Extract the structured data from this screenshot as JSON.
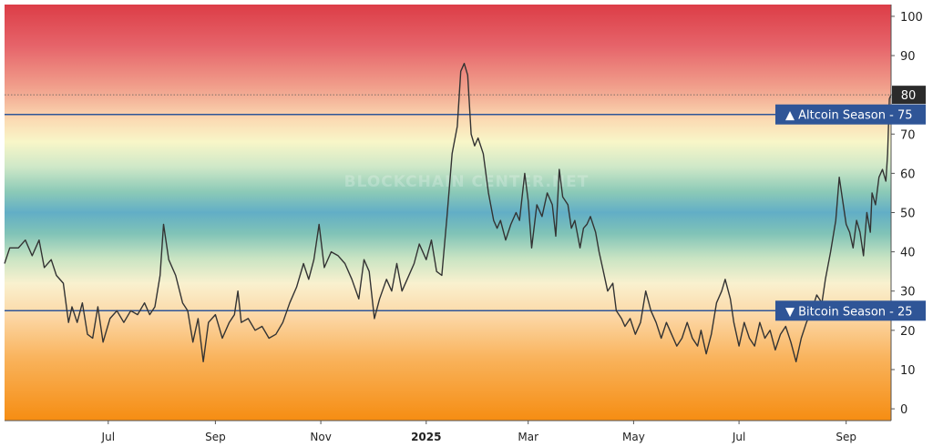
{
  "chart_data": {
    "type": "line",
    "title": "",
    "xlabel": "",
    "ylabel": "",
    "ylim": [
      -3,
      103
    ],
    "y_ticks": [
      0,
      10,
      20,
      30,
      40,
      50,
      60,
      70,
      80,
      90,
      100
    ],
    "x_tick_labels": [
      {
        "label": "Jul",
        "date": "2024-07-01"
      },
      {
        "label": "Sep",
        "date": "2024-09-01"
      },
      {
        "label": "Nov",
        "date": "2024-11-01"
      },
      {
        "label": "2025",
        "date": "2025-01-01",
        "bold": true
      },
      {
        "label": "Mar",
        "date": "2025-03-01"
      },
      {
        "label": "May",
        "date": "2025-05-01"
      },
      {
        "label": "Jul",
        "date": "2025-07-01"
      },
      {
        "label": "Sep",
        "date": "2025-09-01"
      }
    ],
    "x_range": [
      "2024-05-02",
      "2025-09-27"
    ],
    "background": "gradient red (top) through green/blue (middle) to orange (bottom)",
    "watermark": "BLOCKCHAIN CENTER.NET",
    "reference_lines": [
      {
        "value": 75,
        "label": "Altcoin Season",
        "value_label": "75",
        "marker": "▲",
        "color": "#2f5597"
      },
      {
        "value": 25,
        "label": "Bitcoin Season",
        "value_label": "25",
        "marker": "▼",
        "color": "#2f5597"
      }
    ],
    "current_value": {
      "value": 80,
      "label": "80",
      "color": "#2b2b2b"
    },
    "series": [
      {
        "color": "#333333",
        "points": [
          [
            "2024-05-02",
            37
          ],
          [
            "2024-05-05",
            41
          ],
          [
            "2024-05-10",
            41
          ],
          [
            "2024-05-14",
            43
          ],
          [
            "2024-05-18",
            39
          ],
          [
            "2024-05-22",
            43
          ],
          [
            "2024-05-25",
            36
          ],
          [
            "2024-05-29",
            38
          ],
          [
            "2024-06-01",
            34
          ],
          [
            "2024-06-05",
            32
          ],
          [
            "2024-06-08",
            22
          ],
          [
            "2024-06-10",
            26
          ],
          [
            "2024-06-13",
            22
          ],
          [
            "2024-06-16",
            27
          ],
          [
            "2024-06-19",
            19
          ],
          [
            "2024-06-22",
            18
          ],
          [
            "2024-06-25",
            26
          ],
          [
            "2024-06-28",
            17
          ],
          [
            "2024-07-02",
            23
          ],
          [
            "2024-07-06",
            25
          ],
          [
            "2024-07-10",
            22
          ],
          [
            "2024-07-14",
            25
          ],
          [
            "2024-07-18",
            24
          ],
          [
            "2024-07-22",
            27
          ],
          [
            "2024-07-25",
            24
          ],
          [
            "2024-07-28",
            26
          ],
          [
            "2024-07-31",
            34
          ],
          [
            "2024-08-02",
            47
          ],
          [
            "2024-08-05",
            38
          ],
          [
            "2024-08-09",
            34
          ],
          [
            "2024-08-13",
            27
          ],
          [
            "2024-08-16",
            25
          ],
          [
            "2024-08-19",
            17
          ],
          [
            "2024-08-22",
            23
          ],
          [
            "2024-08-25",
            12
          ],
          [
            "2024-08-28",
            22
          ],
          [
            "2024-09-01",
            24
          ],
          [
            "2024-09-05",
            18
          ],
          [
            "2024-09-09",
            22
          ],
          [
            "2024-09-12",
            24
          ],
          [
            "2024-09-14",
            30
          ],
          [
            "2024-09-16",
            22
          ],
          [
            "2024-09-20",
            23
          ],
          [
            "2024-09-24",
            20
          ],
          [
            "2024-09-28",
            21
          ],
          [
            "2024-10-02",
            18
          ],
          [
            "2024-10-06",
            19
          ],
          [
            "2024-10-10",
            22
          ],
          [
            "2024-10-14",
            27
          ],
          [
            "2024-10-18",
            31
          ],
          [
            "2024-10-22",
            37
          ],
          [
            "2024-10-25",
            33
          ],
          [
            "2024-10-28",
            38
          ],
          [
            "2024-10-31",
            47
          ],
          [
            "2024-11-03",
            36
          ],
          [
            "2024-11-07",
            40
          ],
          [
            "2024-11-11",
            39
          ],
          [
            "2024-11-15",
            37
          ],
          [
            "2024-11-19",
            33
          ],
          [
            "2024-11-23",
            28
          ],
          [
            "2024-11-26",
            38
          ],
          [
            "2024-11-29",
            35
          ],
          [
            "2024-12-02",
            23
          ],
          [
            "2024-12-05",
            28
          ],
          [
            "2024-12-09",
            33
          ],
          [
            "2024-12-12",
            30
          ],
          [
            "2024-12-15",
            37
          ],
          [
            "2024-12-18",
            30
          ],
          [
            "2024-12-21",
            33
          ],
          [
            "2024-12-25",
            37
          ],
          [
            "2024-12-28",
            42
          ],
          [
            "2025-01-01",
            38
          ],
          [
            "2025-01-04",
            43
          ],
          [
            "2025-01-07",
            35
          ],
          [
            "2025-01-10",
            34
          ],
          [
            "2025-01-13",
            49
          ],
          [
            "2025-01-16",
            65
          ],
          [
            "2025-01-19",
            72
          ],
          [
            "2025-01-21",
            86
          ],
          [
            "2025-01-23",
            88
          ],
          [
            "2025-01-25",
            85
          ],
          [
            "2025-01-27",
            70
          ],
          [
            "2025-01-29",
            67
          ],
          [
            "2025-01-31",
            69
          ],
          [
            "2025-02-03",
            65
          ],
          [
            "2025-02-06",
            55
          ],
          [
            "2025-02-09",
            48
          ],
          [
            "2025-02-11",
            46
          ],
          [
            "2025-02-13",
            48
          ],
          [
            "2025-02-16",
            43
          ],
          [
            "2025-02-19",
            47
          ],
          [
            "2025-02-22",
            50
          ],
          [
            "2025-02-24",
            48
          ],
          [
            "2025-02-27",
            60
          ],
          [
            "2025-03-01",
            53
          ],
          [
            "2025-03-03",
            41
          ],
          [
            "2025-03-06",
            52
          ],
          [
            "2025-03-09",
            49
          ],
          [
            "2025-03-12",
            55
          ],
          [
            "2025-03-15",
            52
          ],
          [
            "2025-03-17",
            44
          ],
          [
            "2025-03-19",
            61
          ],
          [
            "2025-03-21",
            54
          ],
          [
            "2025-03-24",
            52
          ],
          [
            "2025-03-26",
            46
          ],
          [
            "2025-03-28",
            48
          ],
          [
            "2025-03-31",
            41
          ],
          [
            "2025-04-02",
            46
          ],
          [
            "2025-04-04",
            47
          ],
          [
            "2025-04-06",
            49
          ],
          [
            "2025-04-09",
            45
          ],
          [
            "2025-04-11",
            40
          ],
          [
            "2025-04-13",
            36
          ],
          [
            "2025-04-16",
            30
          ],
          [
            "2025-04-19",
            32
          ],
          [
            "2025-04-21",
            25
          ],
          [
            "2025-04-24",
            23
          ],
          [
            "2025-04-26",
            21
          ],
          [
            "2025-04-29",
            23
          ],
          [
            "2025-05-02",
            19
          ],
          [
            "2025-05-05",
            22
          ],
          [
            "2025-05-08",
            30
          ],
          [
            "2025-05-11",
            25
          ],
          [
            "2025-05-14",
            22
          ],
          [
            "2025-05-17",
            18
          ],
          [
            "2025-05-20",
            22
          ],
          [
            "2025-05-23",
            19
          ],
          [
            "2025-05-26",
            16
          ],
          [
            "2025-05-29",
            18
          ],
          [
            "2025-06-01",
            22
          ],
          [
            "2025-06-04",
            18
          ],
          [
            "2025-06-07",
            16
          ],
          [
            "2025-06-09",
            20
          ],
          [
            "2025-06-12",
            14
          ],
          [
            "2025-06-15",
            19
          ],
          [
            "2025-06-18",
            27
          ],
          [
            "2025-06-21",
            30
          ],
          [
            "2025-06-23",
            33
          ],
          [
            "2025-06-26",
            28
          ],
          [
            "2025-06-28",
            22
          ],
          [
            "2025-07-01",
            16
          ],
          [
            "2025-07-04",
            22
          ],
          [
            "2025-07-07",
            18
          ],
          [
            "2025-07-10",
            16
          ],
          [
            "2025-07-13",
            22
          ],
          [
            "2025-07-16",
            18
          ],
          [
            "2025-07-19",
            20
          ],
          [
            "2025-07-22",
            15
          ],
          [
            "2025-07-25",
            19
          ],
          [
            "2025-07-28",
            21
          ],
          [
            "2025-07-31",
            17
          ],
          [
            "2025-08-03",
            12
          ],
          [
            "2025-08-06",
            18
          ],
          [
            "2025-08-09",
            22
          ],
          [
            "2025-08-12",
            25
          ],
          [
            "2025-08-15",
            29
          ],
          [
            "2025-08-18",
            27
          ],
          [
            "2025-08-20",
            33
          ],
          [
            "2025-08-23",
            40
          ],
          [
            "2025-08-26",
            48
          ],
          [
            "2025-08-28",
            59
          ],
          [
            "2025-08-30",
            53
          ],
          [
            "2025-09-01",
            47
          ],
          [
            "2025-09-03",
            45
          ],
          [
            "2025-09-05",
            41
          ],
          [
            "2025-09-07",
            48
          ],
          [
            "2025-09-09",
            45
          ],
          [
            "2025-09-11",
            39
          ],
          [
            "2025-09-13",
            50
          ],
          [
            "2025-09-15",
            45
          ],
          [
            "2025-09-16",
            55
          ],
          [
            "2025-09-18",
            52
          ],
          [
            "2025-09-20",
            59
          ],
          [
            "2025-09-22",
            61
          ],
          [
            "2025-09-24",
            58
          ],
          [
            "2025-09-25",
            65
          ],
          [
            "2025-09-26",
            79
          ],
          [
            "2025-09-27",
            80
          ]
        ]
      }
    ]
  }
}
